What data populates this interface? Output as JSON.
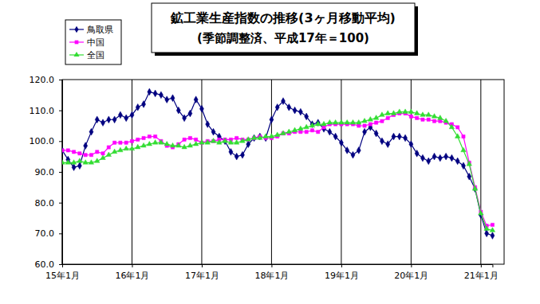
{
  "chart_data": {
    "type": "line",
    "title": "鉱工業生産指数の推移(3ヶ月移動平均)",
    "subtitle": "(季節調整済、平成17年＝100)",
    "categories": [
      "15年1月",
      null,
      null,
      null,
      null,
      null,
      null,
      null,
      null,
      null,
      null,
      null,
      "16年1月",
      null,
      null,
      null,
      null,
      null,
      null,
      null,
      null,
      null,
      null,
      null,
      "17年1月",
      null,
      null,
      null,
      null,
      null,
      null,
      null,
      null,
      null,
      null,
      null,
      "18年1月",
      null,
      null,
      null,
      null,
      null,
      null,
      null,
      null,
      null,
      null,
      null,
      "19年1月",
      null,
      null,
      null,
      null,
      null,
      null,
      null,
      null,
      null,
      null,
      null,
      "20年1月",
      null,
      null,
      null,
      null,
      null,
      null,
      null,
      null,
      null,
      null,
      null,
      "21年1月",
      null,
      null
    ],
    "series": [
      {
        "name": "鳥取県",
        "color": "#000080",
        "marker": "diamond",
        "values": [
          97,
          94,
          91.5,
          92,
          98.5,
          103,
          107,
          106,
          107,
          107,
          108.5,
          107.5,
          108.5,
          111,
          112,
          116,
          115.5,
          115,
          113.5,
          114,
          110,
          107.5,
          109,
          113.5,
          110.5,
          105.5,
          103,
          101.5,
          100,
          96.5,
          95,
          95.5,
          99,
          101,
          101.5,
          101,
          107,
          111,
          113,
          111,
          110,
          109.5,
          108,
          105.5,
          106,
          104,
          103,
          101.5,
          99.5,
          97,
          95.5,
          97,
          103,
          104.5,
          102.5,
          100,
          99,
          101.5,
          101.5,
          101,
          99,
          96,
          94.5,
          93.5,
          95,
          94.5,
          95,
          94.5,
          93.5,
          92,
          88.5,
          84.5,
          76,
          70,
          69.3
        ]
      },
      {
        "name": "中国",
        "color": "#ff00ff",
        "marker": "square",
        "values": [
          97,
          97,
          96.5,
          96,
          95.5,
          95.5,
          96.5,
          96,
          98,
          99.5,
          99.5,
          99.5,
          100,
          100.5,
          101,
          101.5,
          101.5,
          100,
          98.5,
          98,
          99,
          100.5,
          101,
          100.5,
          99.5,
          100,
          100,
          100.5,
          100.5,
          100.5,
          101,
          100.5,
          100.5,
          101,
          101.5,
          101,
          101,
          101.5,
          102.5,
          102.5,
          103,
          103,
          103,
          103.5,
          103,
          104.5,
          105.5,
          105.5,
          105.5,
          105.5,
          105.5,
          105,
          105,
          105.5,
          106,
          106.5,
          107.5,
          108.5,
          109,
          109,
          108,
          107.5,
          107,
          107,
          106.5,
          106.5,
          106,
          105.5,
          104.5,
          101.5,
          93,
          85,
          77,
          72.5,
          72.8
        ]
      },
      {
        "name": "全国",
        "color": "#33dd33",
        "marker": "triangle",
        "values": [
          93,
          93,
          93,
          93.5,
          93,
          93,
          93.5,
          94.5,
          95.5,
          96.5,
          97,
          97.5,
          97.5,
          98,
          98.5,
          99,
          99.5,
          99.5,
          99,
          98.5,
          98.5,
          98,
          98.5,
          99,
          99.5,
          99.5,
          100,
          99.5,
          100,
          99.5,
          99.5,
          100,
          100.5,
          101,
          101,
          101.5,
          101.5,
          102,
          102.5,
          103,
          103.5,
          104,
          104.5,
          105,
          105.5,
          105.5,
          106,
          106,
          106,
          106,
          106,
          106,
          106.5,
          107,
          107.5,
          108.5,
          109,
          109,
          109.5,
          109.5,
          109.5,
          109,
          108.5,
          108.5,
          108,
          107.5,
          106.5,
          104.5,
          101.5,
          97,
          92.5,
          84.5,
          76.5,
          71.5,
          71
        ]
      }
    ],
    "ylim": [
      60,
      120
    ],
    "yticks": [
      {
        "value": 60,
        "label": "60.0"
      },
      {
        "value": 70,
        "label": "70.0"
      },
      {
        "value": 80,
        "label": "80.0"
      },
      {
        "value": 90,
        "label": "90.0"
      },
      {
        "value": 100,
        "label": "100.0"
      },
      {
        "value": 110,
        "label": "110.0"
      },
      {
        "value": 120,
        "label": "120.0"
      }
    ],
    "grid": "x",
    "legend": "top-left"
  }
}
